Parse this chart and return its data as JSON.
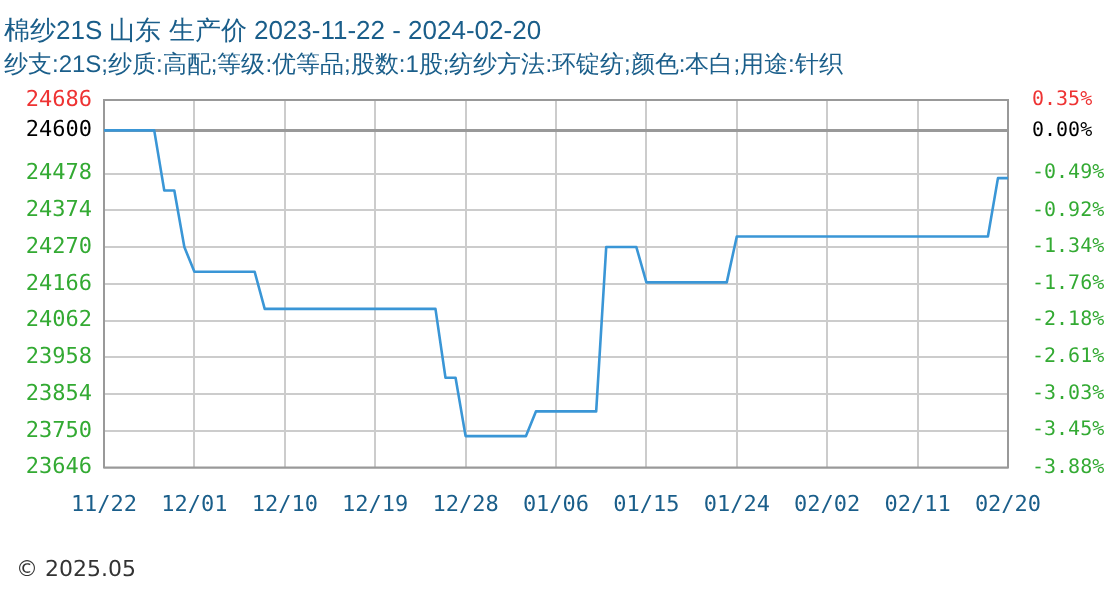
{
  "chart_data": {
    "type": "line",
    "title": "棉纱21S 山东 生产价 2023-11-22 - 2024-02-20",
    "subtitle": "纱支:21S;纱质:高配;等级:优等品;股数:1股;纺纱方法:环锭纺;颜色:本白;用途:针织",
    "x": [
      "2023-11-22",
      "2023-11-27",
      "2023-11-28",
      "2023-11-29",
      "2023-11-30",
      "2023-12-01",
      "2023-12-07",
      "2023-12-08",
      "2023-12-25",
      "2023-12-26",
      "2023-12-27",
      "2023-12-28",
      "2024-01-03",
      "2024-01-04",
      "2024-01-10",
      "2024-01-11",
      "2024-01-14",
      "2024-01-15",
      "2024-01-23",
      "2024-01-24",
      "2024-02-18",
      "2024-02-19",
      "2024-02-20"
    ],
    "series": [
      {
        "color": "#3a96d6",
        "values": [
          24600,
          24600,
          24430,
          24430,
          24270,
          24200,
          24200,
          24095,
          24095,
          23900,
          23900,
          23735,
          23735,
          23805,
          23805,
          24270,
          24270,
          24170,
          24170,
          24300,
          24300,
          24465,
          24465
        ]
      }
    ],
    "xlim": [
      "2023-11-22",
      "2024-02-20"
    ],
    "xticks": [
      {
        "value": "2023-11-22",
        "label": "11/22"
      },
      {
        "value": "2023-12-01",
        "label": "12/01"
      },
      {
        "value": "2023-12-10",
        "label": "12/10"
      },
      {
        "value": "2023-12-19",
        "label": "12/19"
      },
      {
        "value": "2023-12-28",
        "label": "12/28"
      },
      {
        "value": "2024-01-06",
        "label": "01/06"
      },
      {
        "value": "2024-01-15",
        "label": "01/15"
      },
      {
        "value": "2024-01-24",
        "label": "01/24"
      },
      {
        "value": "2024-02-02",
        "label": "02/02"
      },
      {
        "value": "2024-02-11",
        "label": "02/11"
      },
      {
        "value": "2024-02-20",
        "label": "02/20"
      }
    ],
    "ylim": [
      23646,
      24686
    ],
    "yticks": [
      23646,
      23750,
      23854,
      23958,
      24062,
      24166,
      24270,
      24374,
      24478,
      24600,
      24686
    ],
    "y2lim": [
      -3.88,
      0.35
    ],
    "y2ticks": [
      {
        "value": -3.88,
        "label": "-3.88%"
      },
      {
        "value": -3.45,
        "label": "-3.45%"
      },
      {
        "value": -3.03,
        "label": "-3.03%"
      },
      {
        "value": -2.61,
        "label": "-2.61%"
      },
      {
        "value": -2.18,
        "label": "-2.18%"
      },
      {
        "value": -1.76,
        "label": "-1.76%"
      },
      {
        "value": -1.34,
        "label": "-1.34%"
      },
      {
        "value": -0.92,
        "label": "-0.92%"
      },
      {
        "value": -0.49,
        "label": "-0.49%"
      },
      {
        "value": 0,
        "label": "0.00%"
      },
      {
        "value": 0.35,
        "label": "0.35%"
      }
    ],
    "ref_lines": [
      {
        "axis": "y",
        "value": 24600,
        "color": "#999999"
      }
    ],
    "grid": true,
    "line_style": "solid",
    "marker": "none",
    "legend": false,
    "annotations": [
      "© 2025.05"
    ]
  }
}
